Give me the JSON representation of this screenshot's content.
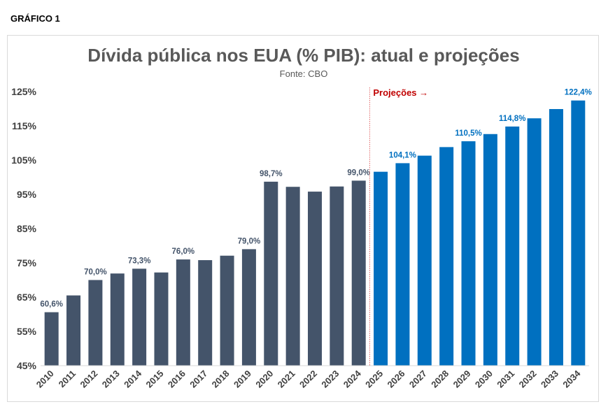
{
  "figure_label": "GRÁFICO 1",
  "chart_data": {
    "type": "bar",
    "title": "Dívida pública nos EUA (% PIB): atual e projeções",
    "subtitle": "Fonte: CBO",
    "xlabel": "",
    "ylabel": "",
    "ylim": [
      45,
      125
    ],
    "y_ticks": [
      "45%",
      "55%",
      "65%",
      "75%",
      "85%",
      "95%",
      "105%",
      "115%",
      "125%"
    ],
    "y_tick_values": [
      45,
      55,
      65,
      75,
      85,
      95,
      105,
      115,
      125
    ],
    "grid": false,
    "legend": "none",
    "projection_marker": {
      "label": "Projeções →",
      "after_category": "2024"
    },
    "categories": [
      "2010",
      "2011",
      "2012",
      "2013",
      "2014",
      "2015",
      "2016",
      "2017",
      "2018",
      "2019",
      "2020",
      "2021",
      "2022",
      "2023",
      "2024",
      "2025",
      "2026",
      "2027",
      "2028",
      "2029",
      "2030",
      "2031",
      "2032",
      "2033",
      "2034"
    ],
    "values": [
      60.6,
      65.5,
      70.0,
      71.9,
      73.3,
      72.2,
      76.0,
      75.8,
      77.1,
      79.0,
      98.7,
      97.2,
      95.8,
      97.3,
      99.0,
      101.6,
      104.1,
      106.3,
      108.8,
      110.5,
      112.6,
      114.8,
      117.2,
      119.9,
      122.4
    ],
    "data_labels": {
      "2010": "60,6%",
      "2012": "70,0%",
      "2014": "73,3%",
      "2016": "76,0%",
      "2019": "79,0%",
      "2020": "98,7%",
      "2024": "99,0%",
      "2026": "104,1%",
      "2029": "110,5%",
      "2031": "114,8%",
      "2034": "122,4%"
    },
    "colors": {
      "actual": "#44546a",
      "projection": "#0070c0",
      "marker_line": "#e06666",
      "marker_text": "#c00000"
    }
  }
}
